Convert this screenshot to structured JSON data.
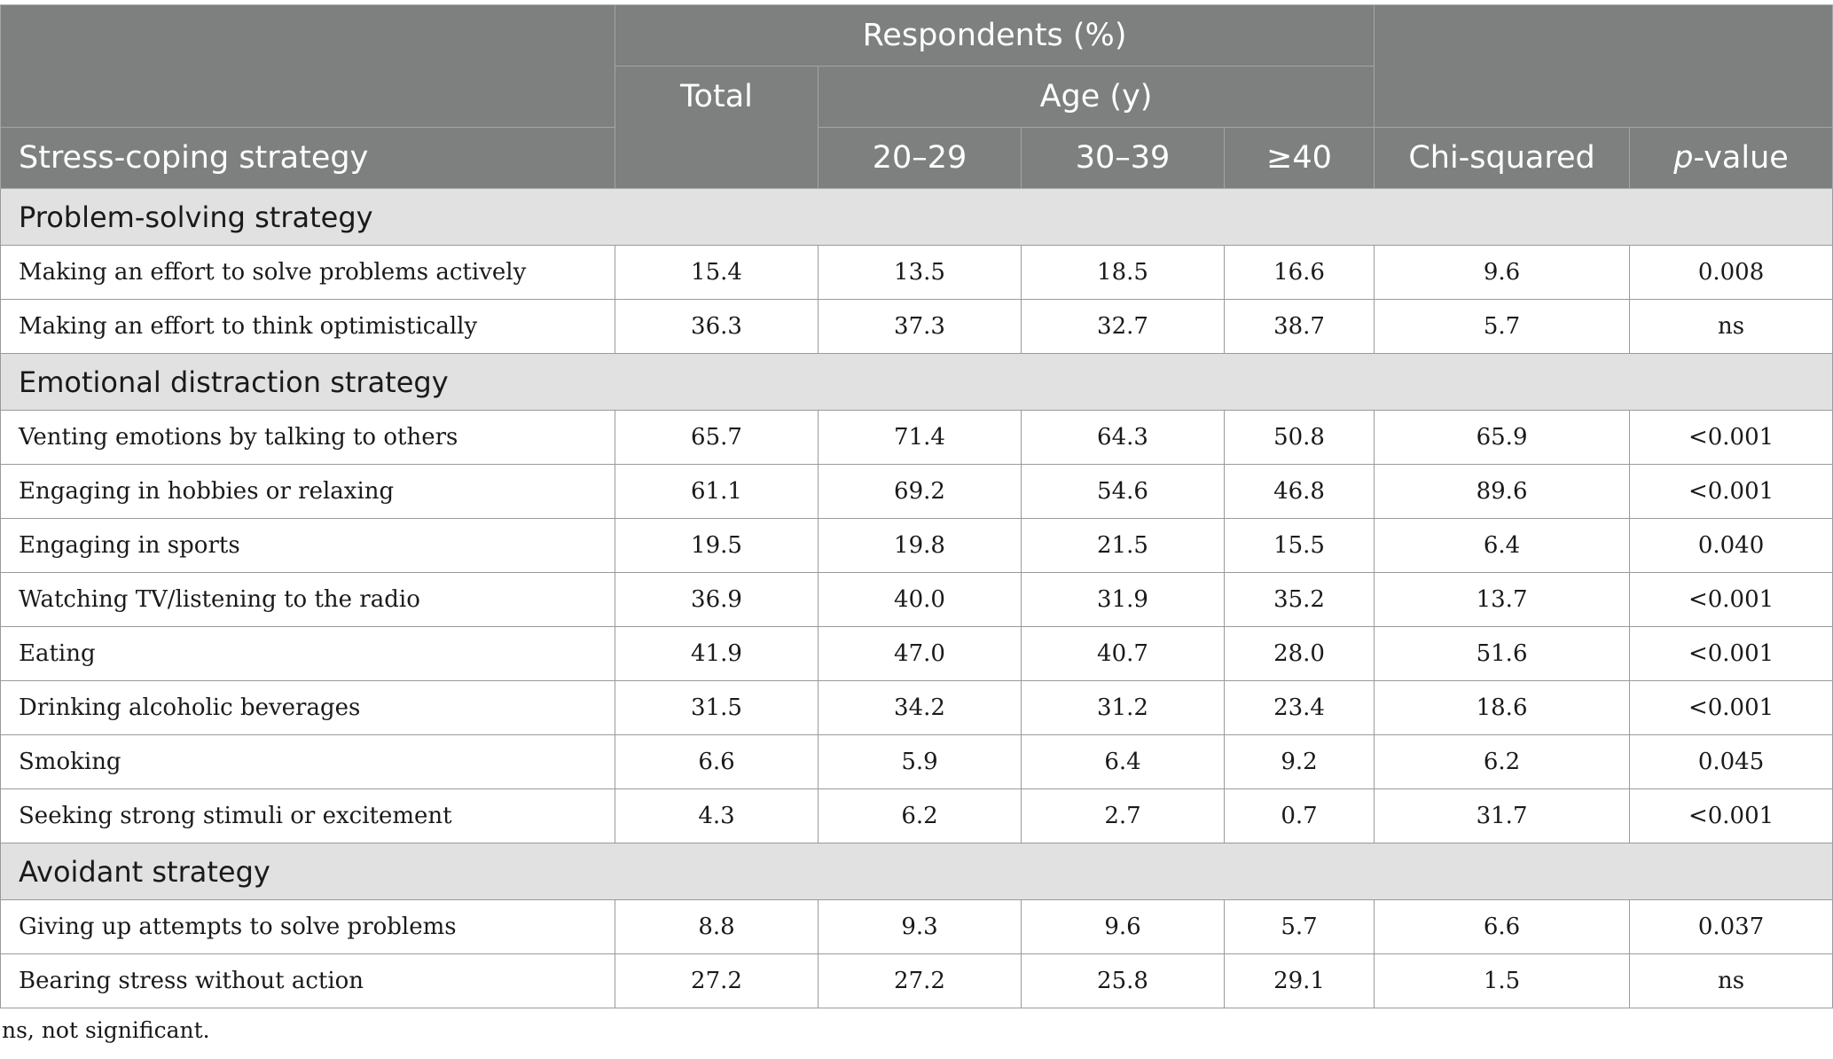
{
  "header": {
    "respondents": "Respondents (%)",
    "total": "Total",
    "age": "Age (y)",
    "strategy": "Stress-coping strategy",
    "age_groups": [
      "20–29",
      "30–39",
      "≥40"
    ],
    "chi": "Chi-squared",
    "p_italic": "p",
    "p_rest": "-value"
  },
  "sections": [
    {
      "title": "Problem-solving strategy",
      "rows": [
        {
          "label": "Making an effort to solve problems actively",
          "values": [
            "15.4",
            "13.5",
            "18.5",
            "16.6",
            "9.6",
            "0.008"
          ]
        },
        {
          "label": "Making an effort to think optimistically",
          "values": [
            "36.3",
            "37.3",
            "32.7",
            "38.7",
            "5.7",
            "ns"
          ]
        }
      ]
    },
    {
      "title": "Emotional distraction strategy",
      "rows": [
        {
          "label": "Venting emotions by talking to others",
          "values": [
            "65.7",
            "71.4",
            "64.3",
            "50.8",
            "65.9",
            "<0.001"
          ]
        },
        {
          "label": "Engaging in hobbies or relaxing",
          "values": [
            "61.1",
            "69.2",
            "54.6",
            "46.8",
            "89.6",
            "<0.001"
          ]
        },
        {
          "label": "Engaging in sports",
          "values": [
            "19.5",
            "19.8",
            "21.5",
            "15.5",
            "6.4",
            "0.040"
          ]
        },
        {
          "label": "Watching TV/listening to the radio",
          "values": [
            "36.9",
            "40.0",
            "31.9",
            "35.2",
            "13.7",
            "<0.001"
          ]
        },
        {
          "label": "Eating",
          "values": [
            "41.9",
            "47.0",
            "40.7",
            "28.0",
            "51.6",
            "<0.001"
          ]
        },
        {
          "label": "Drinking alcoholic beverages",
          "values": [
            "31.5",
            "34.2",
            "31.2",
            "23.4",
            "18.6",
            "<0.001"
          ]
        },
        {
          "label": "Smoking",
          "values": [
            "6.6",
            "5.9",
            "6.4",
            "9.2",
            "6.2",
            "0.045"
          ]
        },
        {
          "label": "Seeking strong stimuli or excitement",
          "values": [
            "4.3",
            "6.2",
            "2.7",
            "0.7",
            "31.7",
            "<0.001"
          ]
        }
      ]
    },
    {
      "title": "Avoidant strategy",
      "rows": [
        {
          "label": "Giving up attempts to solve problems",
          "values": [
            "8.8",
            "9.3",
            "9.6",
            "5.7",
            "6.6",
            "0.037"
          ]
        },
        {
          "label": "Bearing stress without action",
          "values": [
            "27.2",
            "27.2",
            "25.8",
            "29.1",
            "1.5",
            "ns"
          ]
        }
      ]
    }
  ],
  "footnote": "ns, not significant."
}
